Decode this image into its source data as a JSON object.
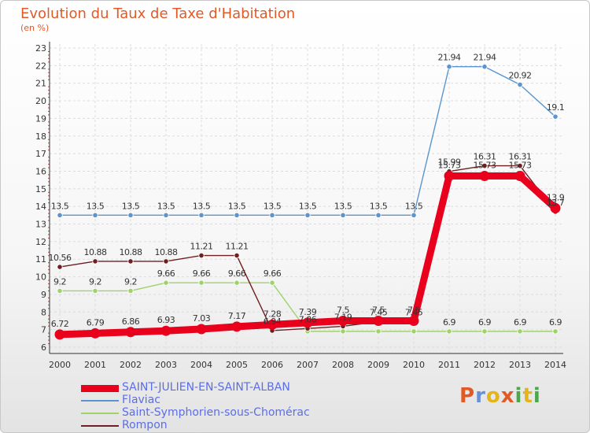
{
  "chart_data": {
    "type": "line",
    "title": "Evolution du Taux de Taxe d'Habitation",
    "subtitle": "(en %)",
    "x": [
      "2000",
      "2001",
      "2002",
      "2003",
      "2004",
      "2005",
      "2006",
      "2007",
      "2008",
      "2009",
      "2010",
      "2011",
      "2012",
      "2013",
      "2014"
    ],
    "ylim": [
      6,
      23
    ],
    "yticks": [
      6,
      7,
      8,
      9,
      10,
      11,
      12,
      13,
      14,
      15,
      16,
      17,
      18,
      19,
      20,
      21,
      22,
      23
    ],
    "grid": true,
    "legend_position": "bottom-left",
    "series": [
      {
        "name": "SAINT-JULIEN-EN-SAINT-ALBAN",
        "color": "#e8001c",
        "values": [
          6.72,
          6.79,
          6.86,
          6.93,
          7.03,
          7.17,
          7.28,
          7.39,
          7.5,
          7.5,
          7.5,
          15.73,
          15.73,
          15.73,
          13.9
        ],
        "labels": [
          "6.72",
          "6.79",
          "6.86",
          "6.93",
          "7.03",
          "7.17",
          "7.28",
          "7.39",
          "7.5",
          "7.5",
          "7.5",
          "15.73",
          "15.73",
          "15.73",
          "13.9"
        ]
      },
      {
        "name": "Flaviac",
        "color": "#5a95cf",
        "values": [
          13.5,
          13.5,
          13.5,
          13.5,
          13.5,
          13.5,
          13.5,
          13.5,
          13.5,
          13.5,
          13.5,
          21.94,
          21.94,
          20.92,
          19.1
        ],
        "labels": [
          "13.5",
          "13.5",
          "13.5",
          "13.5",
          "13.5",
          "13.5",
          "13.5",
          "13.5",
          "13.5",
          "13.5",
          "13.5",
          "21.94",
          "21.94",
          "20.92",
          "19.1"
        ]
      },
      {
        "name": "Saint-Symphorien-sous-Chomérac",
        "color": "#9ed36a",
        "values": [
          9.2,
          9.2,
          9.2,
          9.66,
          9.66,
          9.66,
          9.66,
          6.9,
          6.9,
          6.9,
          6.9,
          6.9,
          6.9,
          6.9,
          6.9
        ],
        "labels": [
          "9.2",
          "9.2",
          "9.2",
          "9.66",
          "9.66",
          "9.66",
          "9.66",
          "",
          "",
          "",
          "",
          "6.9",
          "6.9",
          "6.9",
          "6.9"
        ]
      },
      {
        "name": "Rompon",
        "color": "#6e1f1f",
        "values": [
          10.56,
          10.88,
          10.88,
          10.88,
          11.21,
          11.21,
          6.94,
          7.06,
          7.19,
          7.45,
          7.45,
          15.99,
          16.31,
          16.31,
          13.7
        ],
        "labels": [
          "10.56",
          "10.88",
          "10.88",
          "10.88",
          "11.21",
          "11.21",
          "6.94",
          "7.06",
          "7.19",
          "7.45",
          "7.45",
          "15.99",
          "16.31",
          "16.31",
          "13.7"
        ]
      }
    ]
  },
  "logo": {
    "letters": [
      "P",
      "r",
      "o",
      "x",
      "i",
      "t",
      "i"
    ],
    "colors": [
      "#e05a28",
      "#6a8fd6",
      "#e5b416",
      "#e05a28",
      "#4aa84a",
      "#e5b416",
      "#4aa84a"
    ]
  }
}
